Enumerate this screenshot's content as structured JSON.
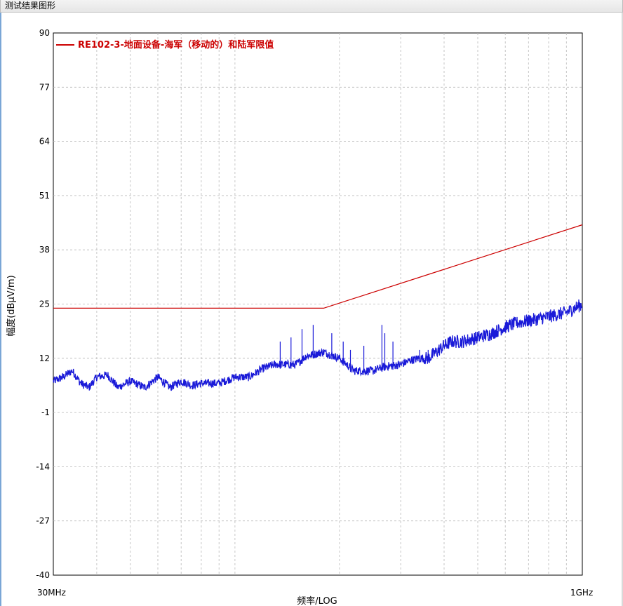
{
  "window": {
    "title": "测试结果图形"
  },
  "colors": {
    "limit": "#cc0000",
    "measurement": "#1a1ad8",
    "grid": "#b8b8b8",
    "legend": "#cc0000"
  },
  "chart_data": {
    "type": "line",
    "x_scale": "log",
    "xlim_mhz": [
      30,
      1000
    ],
    "ylim": [
      -40,
      90
    ],
    "ylabel": "幅度(dBμV/m)",
    "xlabel": "频率/LOG",
    "x_tick_labels": [
      "30MHz",
      "1GHz"
    ],
    "y_ticks": [
      90,
      77,
      64,
      51,
      38,
      25,
      12,
      -1,
      -14,
      -27,
      -40
    ],
    "grid": true,
    "legend": "top-left",
    "series": [
      {
        "name": "RE102-3-地面设备-海军（移动的）和陆军限值",
        "role": "limit",
        "x_mhz": [
          30,
          180,
          1000
        ],
        "y": [
          24,
          24,
          44
        ]
      },
      {
        "role": "measurement",
        "x_mhz": [
          30,
          32,
          34,
          36,
          38,
          40,
          43,
          46,
          50,
          55,
          60,
          65,
          70,
          75,
          80,
          90,
          100,
          110,
          120,
          130,
          140,
          150,
          160,
          180,
          200,
          220,
          250,
          270,
          300,
          320,
          340,
          360,
          380,
          400,
          420,
          450,
          500,
          550,
          600,
          650,
          700,
          750,
          800,
          850,
          900,
          950,
          1000
        ],
        "y": [
          6.5,
          7.5,
          9,
          6,
          5,
          7.5,
          8,
          5,
          6.5,
          5,
          7.5,
          5,
          6.5,
          5.5,
          6,
          6,
          7.5,
          7.5,
          9.5,
          10.5,
          10.5,
          10.5,
          12.5,
          13.5,
          12,
          9,
          9,
          10,
          10.5,
          11.5,
          12,
          12,
          13.5,
          15,
          16,
          16,
          17,
          18,
          19.5,
          20.5,
          21,
          21.5,
          22,
          22.5,
          23,
          24,
          25
        ]
      }
    ],
    "spikes": [
      {
        "x_mhz": 135,
        "y": 16
      },
      {
        "x_mhz": 145,
        "y": 17
      },
      {
        "x_mhz": 156,
        "y": 19
      },
      {
        "x_mhz": 168,
        "y": 20
      },
      {
        "x_mhz": 190,
        "y": 18
      },
      {
        "x_mhz": 205,
        "y": 16
      },
      {
        "x_mhz": 215,
        "y": 14
      },
      {
        "x_mhz": 235,
        "y": 15
      },
      {
        "x_mhz": 265,
        "y": 20
      },
      {
        "x_mhz": 270,
        "y": 18
      },
      {
        "x_mhz": 285,
        "y": 16
      },
      {
        "x_mhz": 340,
        "y": 14
      },
      {
        "x_mhz": 360,
        "y": 14
      }
    ]
  }
}
